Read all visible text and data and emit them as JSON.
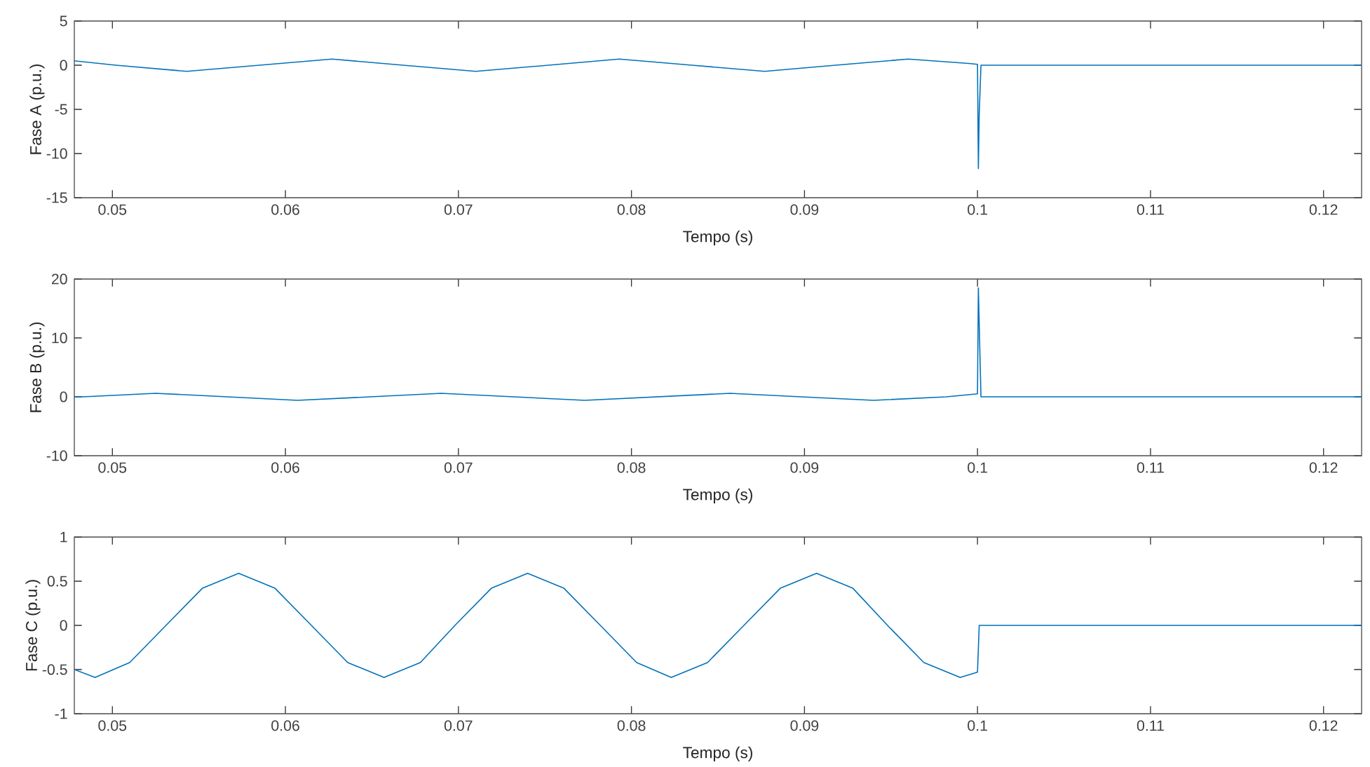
{
  "chart_data": [
    {
      "type": "line",
      "xlabel": "Tempo (s)",
      "ylabel": "Fase A (p.u.)",
      "xlim": [
        0.0478,
        0.1222
      ],
      "ylim": [
        -15,
        5
      ],
      "xticks": [
        0.05,
        0.06,
        0.07,
        0.08,
        0.09,
        0.1,
        0.11,
        0.12
      ],
      "yticks": [
        -15,
        -10,
        -5,
        0,
        5
      ],
      "x": [
        0.0478,
        0.0502,
        0.0543,
        0.0585,
        0.0627,
        0.0668,
        0.071,
        0.0752,
        0.0793,
        0.0835,
        0.0877,
        0.0918,
        0.096,
        0.0995,
        0.1,
        0.10005,
        0.1001,
        0.1002,
        0.1222
      ],
      "series": [
        {
          "color": "#0072bd",
          "values": [
            0.5,
            0,
            -0.7,
            0,
            0.7,
            0,
            -0.7,
            0,
            0.7,
            0,
            -0.7,
            0,
            0.7,
            0.2,
            0.1,
            -11.7,
            -5.5,
            0,
            0
          ]
        }
      ]
    },
    {
      "type": "line",
      "xlabel": "Tempo (s)",
      "ylabel": "Fase B (p.u.)",
      "xlim": [
        0.0478,
        0.1222
      ],
      "ylim": [
        -10,
        20
      ],
      "xticks": [
        0.05,
        0.06,
        0.07,
        0.08,
        0.09,
        0.1,
        0.11,
        0.12
      ],
      "yticks": [
        -10,
        0,
        10,
        20
      ],
      "x": [
        0.0478,
        0.0483,
        0.0525,
        0.0566,
        0.0607,
        0.0649,
        0.069,
        0.0732,
        0.0773,
        0.0815,
        0.0857,
        0.0898,
        0.094,
        0.0982,
        0.1,
        0.10005,
        0.1002,
        0.1222
      ],
      "series": [
        {
          "color": "#0072bd",
          "values": [
            0,
            0,
            0.6,
            0,
            -0.6,
            0,
            0.6,
            0,
            -0.6,
            0,
            0.6,
            0,
            -0.6,
            0,
            0.5,
            18.5,
            0,
            0
          ]
        }
      ]
    },
    {
      "type": "line",
      "xlabel": "Tempo (s)",
      "ylabel": "Fase C (p.u.)",
      "xlim": [
        0.0478,
        0.1222
      ],
      "ylim": [
        -1,
        1
      ],
      "xticks": [
        0.05,
        0.06,
        0.07,
        0.08,
        0.09,
        0.1,
        0.11,
        0.12
      ],
      "yticks": [
        -1,
        -0.5,
        0,
        0.5,
        1
      ],
      "x": [
        0.0478,
        0.049,
        0.051,
        0.0531,
        0.0552,
        0.0573,
        0.0594,
        0.0615,
        0.0636,
        0.0657,
        0.0678,
        0.0698,
        0.0719,
        0.074,
        0.0761,
        0.0782,
        0.0803,
        0.0823,
        0.0844,
        0.0865,
        0.0886,
        0.0907,
        0.0928,
        0.0948,
        0.0969,
        0.099,
        0.1,
        0.1001,
        0.1222
      ],
      "series": [
        {
          "color": "#0072bd",
          "values": [
            -0.5,
            -0.59,
            -0.42,
            0,
            0.42,
            0.59,
            0.42,
            0,
            -0.42,
            -0.59,
            -0.42,
            0,
            0.42,
            0.59,
            0.42,
            0,
            -0.42,
            -0.59,
            -0.42,
            0,
            0.42,
            0.59,
            0.42,
            0,
            -0.42,
            -0.59,
            -0.53,
            0,
            0
          ]
        }
      ]
    }
  ]
}
